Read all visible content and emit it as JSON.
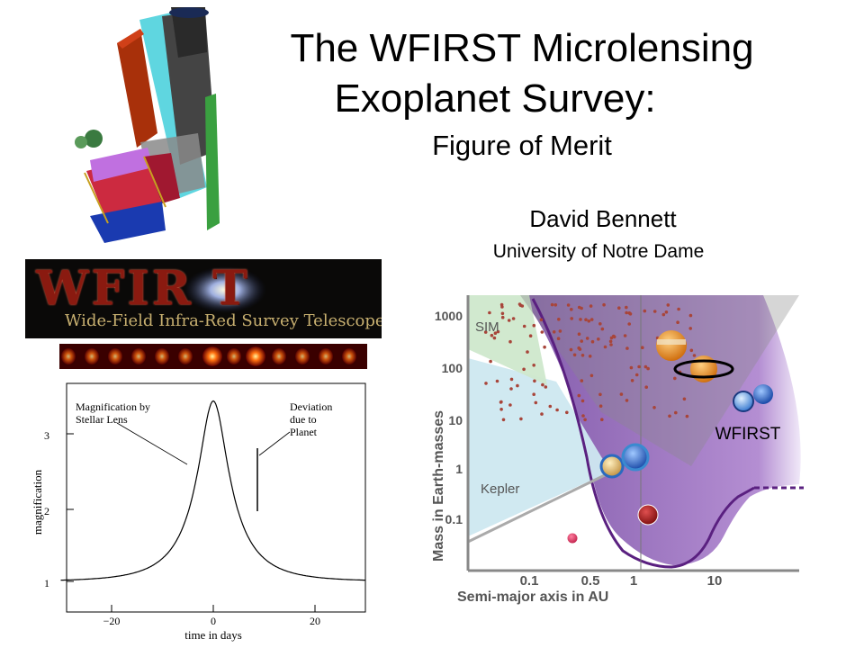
{
  "slide": {
    "title_line1": "The WFIRST Microlensing",
    "title_line2": "Exoplanet Survey:",
    "subtitle": "Figure of Merit",
    "author": "David Bennett",
    "affiliation": "University of Notre Dame"
  },
  "banner": {
    "logo_text": "WFIR  T",
    "tagline": "Wide-Field Infra-Red Survey Telescope"
  },
  "light_curve": {
    "annotation_lens": [
      "Magnification by",
      "Stellar Lens"
    ],
    "annotation_planet": [
      "Deviation",
      "due to",
      "Planet"
    ],
    "ylabel": "magnification",
    "xlabel": "time in days",
    "yticks": [
      "1",
      "2",
      "3"
    ],
    "xticks": [
      "−20",
      "0",
      "20"
    ]
  },
  "mass_plot": {
    "ylabel": "Mass in Earth-masses",
    "xlabel": "Semi-major axis in AU",
    "yticks": [
      "1000",
      "100",
      "10",
      "1",
      "0.1"
    ],
    "xticks": [
      "0.1",
      "0.5",
      "1",
      "10"
    ],
    "region_sim": "SIM",
    "region_kepler": "Kepler",
    "region_wfirst": "WFIRST",
    "colors": {
      "sim": "#cfe8cc",
      "kepler": "#cde8f0",
      "wfirst": "#9a6fb8",
      "rv_points": "#a8453a"
    }
  }
}
